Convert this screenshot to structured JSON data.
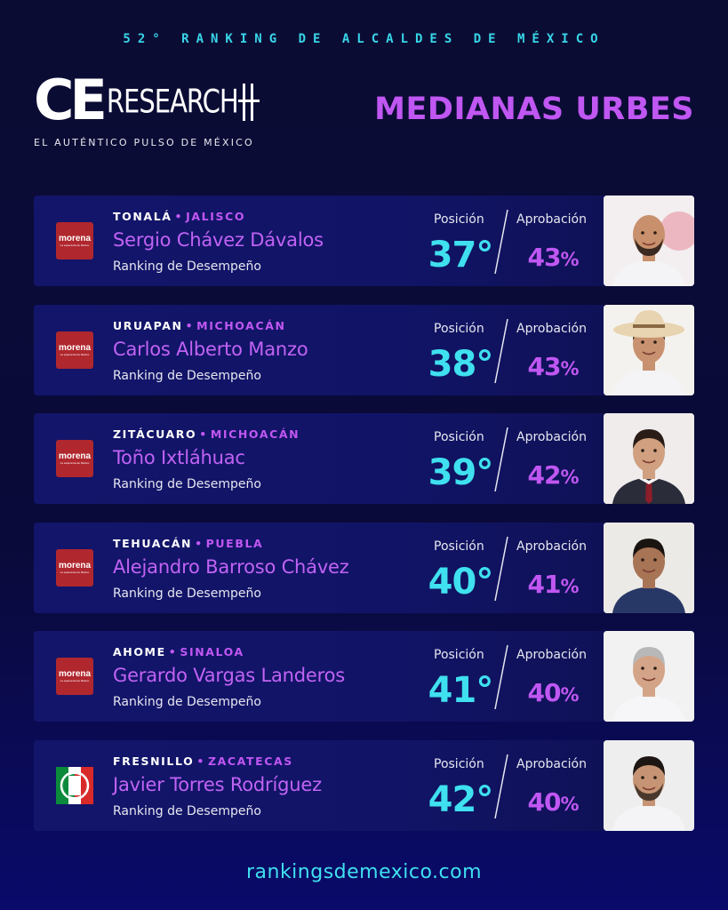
{
  "header": {
    "top_title": "52° RANKING DE ALCALDES DE MÉXICO",
    "logo_ce": "CE",
    "logo_research": "RESEARCH",
    "tagline": "EL AUTÉNTICO PULSO DE MÉXICO",
    "section_title": "MEDIANAS URBES"
  },
  "labels": {
    "position": "Posición",
    "approval": "Aprobación",
    "ranking": "Ranking de Desempeño"
  },
  "colors": {
    "accent_cyan": "#3fe0ef",
    "accent_purple": "#c057f2",
    "background": "#0b0c33",
    "morena": "#b0272e"
  },
  "mayors": [
    {
      "city": "TONALÁ",
      "state": "JALISCO",
      "name": "Sergio Chávez Dávalos",
      "party": "morena",
      "party_label": "morena",
      "party_slogan": "La esperanza de México",
      "position": "37°",
      "approval": "43",
      "approval_unit": "%",
      "photo": "portrait-bald-man-beard"
    },
    {
      "city": "URUAPAN",
      "state": "MICHOACÁN",
      "name": "Carlos Alberto Manzo",
      "party": "morena",
      "party_label": "morena",
      "party_slogan": "La esperanza de México",
      "position": "38°",
      "approval": "43",
      "approval_unit": "%",
      "photo": "portrait-man-cowboy-hat"
    },
    {
      "city": "ZITÁCUARO",
      "state": "MICHOACÁN",
      "name": "Toño Ixtláhuac",
      "party": "morena",
      "party_label": "morena",
      "party_slogan": "La esperanza de México",
      "position": "39°",
      "approval": "42",
      "approval_unit": "%",
      "photo": "portrait-man-suit"
    },
    {
      "city": "TEHUACÁN",
      "state": "PUEBLA",
      "name": "Alejandro Barroso Chávez",
      "party": "morena",
      "party_label": "morena",
      "party_slogan": "La esperanza de México",
      "position": "40°",
      "approval": "41",
      "approval_unit": "%",
      "photo": "portrait-man-jacket"
    },
    {
      "city": "AHOME",
      "state": "SINALOA",
      "name": "Gerardo Vargas Landeros",
      "party": "morena",
      "party_label": "morena",
      "party_slogan": "La esperanza de México",
      "position": "41°",
      "approval": "40",
      "approval_unit": "%",
      "photo": "portrait-gray-hair-man"
    },
    {
      "city": "FRESNILLO",
      "state": "ZACATECAS",
      "name": "Javier Torres Rodríguez",
      "party": "pri",
      "party_label": "PRI",
      "party_slogan": "",
      "position": "42°",
      "approval": "40",
      "approval_unit": "%",
      "photo": "portrait-man-white-shirt"
    }
  ],
  "footer": {
    "url": "rankingsdemexico.com"
  }
}
